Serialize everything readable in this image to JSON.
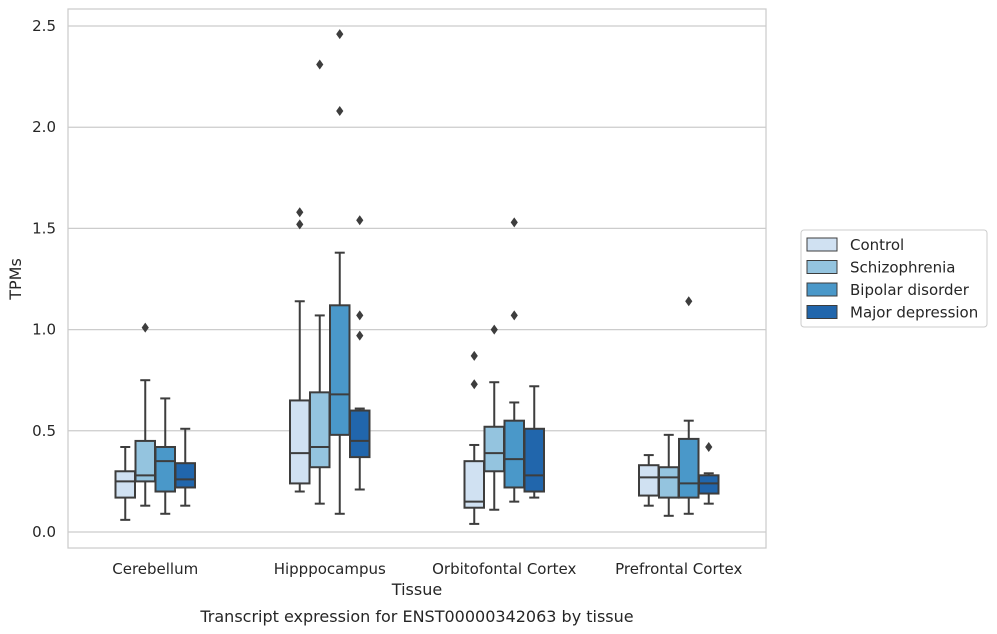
{
  "chart_data": {
    "type": "box",
    "title": "",
    "caption": "Transcript expression for ENST00000342063 by tissue",
    "xlabel": "Tissue",
    "ylabel": "TPMs",
    "ylim": [
      -0.08,
      2.58
    ],
    "yticks": [
      "0.0",
      "0.5",
      "1.0",
      "1.5",
      "2.0",
      "2.5"
    ],
    "grid": true,
    "legend_position": "right",
    "categories": [
      "Cerebellum",
      "Hipppocampus",
      "Orbitofontal Cortex",
      "Prefrontal Cortex"
    ],
    "series": [
      {
        "name": "Control",
        "color": "#d0e1f2",
        "boxes": [
          {
            "whislo": 0.06,
            "q1": 0.17,
            "med": 0.25,
            "q3": 0.3,
            "whishi": 0.42,
            "fliers": []
          },
          {
            "whislo": 0.2,
            "q1": 0.24,
            "med": 0.39,
            "q3": 0.65,
            "whishi": 1.14,
            "fliers": [
              1.52,
              1.58
            ]
          },
          {
            "whislo": 0.04,
            "q1": 0.12,
            "med": 0.15,
            "q3": 0.35,
            "whishi": 0.43,
            "fliers": [
              0.73,
              0.87
            ]
          },
          {
            "whislo": 0.13,
            "q1": 0.18,
            "med": 0.27,
            "q3": 0.33,
            "whishi": 0.38,
            "fliers": []
          }
        ]
      },
      {
        "name": "Schizophrenia",
        "color": "#94c4df",
        "boxes": [
          {
            "whislo": 0.13,
            "q1": 0.25,
            "med": 0.28,
            "q3": 0.45,
            "whishi": 0.75,
            "fliers": [
              1.01
            ]
          },
          {
            "whislo": 0.14,
            "q1": 0.32,
            "med": 0.42,
            "q3": 0.69,
            "whishi": 1.07,
            "fliers": [
              2.31
            ]
          },
          {
            "whislo": 0.11,
            "q1": 0.3,
            "med": 0.39,
            "q3": 0.52,
            "whishi": 0.74,
            "fliers": [
              1.0
            ]
          },
          {
            "whislo": 0.08,
            "q1": 0.17,
            "med": 0.27,
            "q3": 0.32,
            "whishi": 0.48,
            "fliers": []
          }
        ]
      },
      {
        "name": "Bipolar disorder",
        "color": "#4a98c9",
        "boxes": [
          {
            "whislo": 0.09,
            "q1": 0.2,
            "med": 0.35,
            "q3": 0.42,
            "whishi": 0.66,
            "fliers": []
          },
          {
            "whislo": 0.09,
            "q1": 0.48,
            "med": 0.68,
            "q3": 1.12,
            "whishi": 1.38,
            "fliers": [
              2.08,
              2.46
            ]
          },
          {
            "whislo": 0.15,
            "q1": 0.22,
            "med": 0.36,
            "q3": 0.55,
            "whishi": 0.64,
            "fliers": [
              1.07,
              1.53
            ]
          },
          {
            "whislo": 0.09,
            "q1": 0.17,
            "med": 0.24,
            "q3": 0.46,
            "whishi": 0.55,
            "fliers": [
              1.14
            ]
          }
        ]
      },
      {
        "name": "Major depression",
        "color": "#2166ac",
        "boxes": [
          {
            "whislo": 0.13,
            "q1": 0.22,
            "med": 0.26,
            "q3": 0.34,
            "whishi": 0.51,
            "fliers": []
          },
          {
            "whislo": 0.21,
            "q1": 0.37,
            "med": 0.45,
            "q3": 0.6,
            "whishi": 0.61,
            "fliers": [
              0.97,
              1.07,
              1.54
            ]
          },
          {
            "whislo": 0.17,
            "q1": 0.2,
            "med": 0.28,
            "q3": 0.51,
            "whishi": 0.72,
            "fliers": []
          },
          {
            "whislo": 0.14,
            "q1": 0.19,
            "med": 0.24,
            "q3": 0.28,
            "whishi": 0.29,
            "fliers": [
              0.42
            ]
          }
        ]
      }
    ]
  }
}
